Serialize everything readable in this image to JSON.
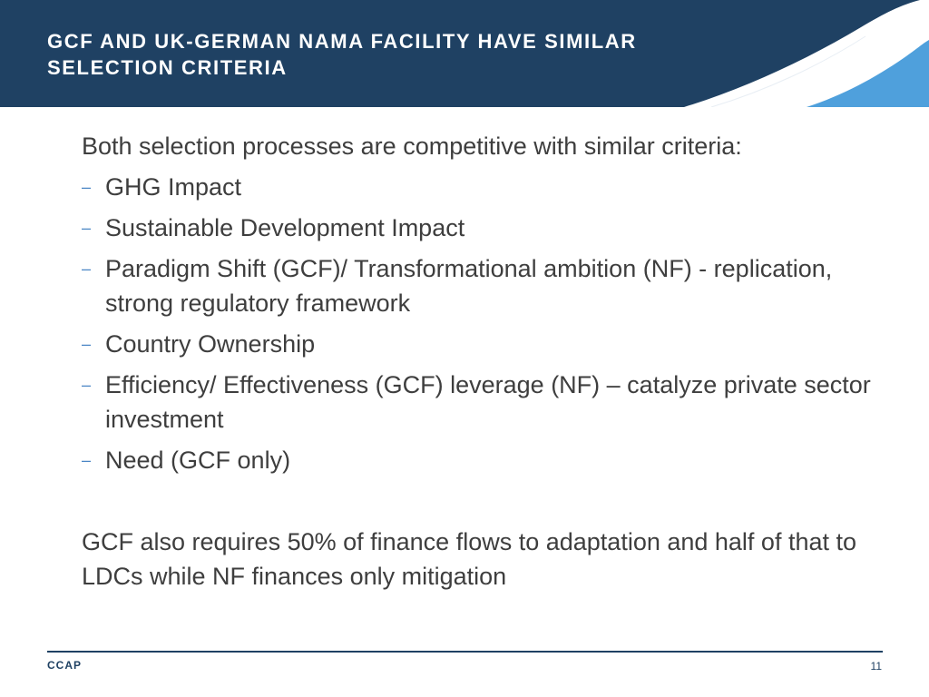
{
  "header": {
    "title_line1": "GCF AND UK-GERMAN NAMA FACILITY HAVE SIMILAR",
    "title_line2": "SELECTION CRITERIA"
  },
  "content": {
    "intro": "Both selection processes are competitive with similar criteria:",
    "bullets": [
      "GHG Impact",
      "Sustainable Development Impact",
      "Paradigm Shift (GCF)/ Transformational ambition (NF) - replication, strong regulatory framework",
      "Country Ownership",
      "Efficiency/ Effectiveness (GCF) leverage (NF) – catalyze private sector investment",
      "Need (GCF only)"
    ],
    "bullet_marker": "–",
    "closing": "GCF also requires 50% of finance flows to adaptation and half of that to LDCs while NF finances only mitigation"
  },
  "footer": {
    "org": "CCAP",
    "page_number": "11"
  },
  "colors": {
    "header_bg": "#1f4163",
    "wave_light": "#ffffff",
    "wave_accent": "#4fa0dc",
    "text": "#3e3e3e",
    "bullet": "#4a86c5"
  }
}
